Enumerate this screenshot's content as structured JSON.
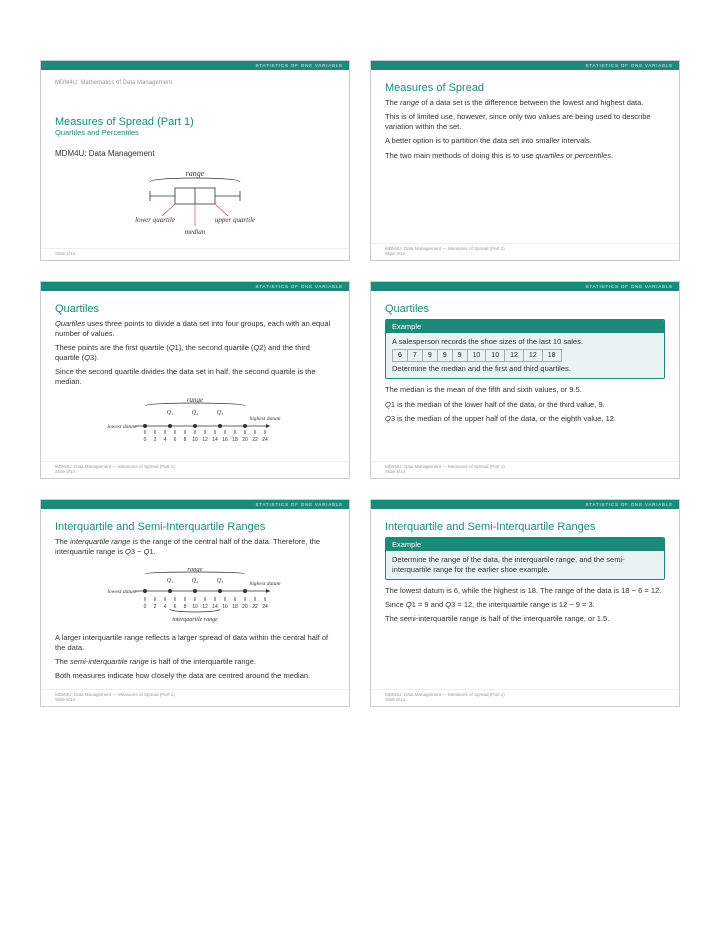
{
  "topbar": "STATISTICS OF ONE VARIABLE",
  "slide1": {
    "course": "MDM4U: Mathematics of Data Management",
    "title": "Measures of Spread (Part 1)",
    "subtitle": "Quartiles and Percentiles",
    "author": "MDM4U: Data Management",
    "footer": "Slide 1/14"
  },
  "slide2": {
    "title": "Measures of Spread",
    "p1a": "The ",
    "p1i": "range",
    "p1b": " of a data set is the difference between the lowest and highest data.",
    "p2": "This is of limited use, however, since only two values are being used to describe variation within the set.",
    "p3": "A better option is to partition the data set into smaller intervals.",
    "p4a": "The two main methods of doing this is to use ",
    "p4i1": "quartiles",
    "p4m": " or ",
    "p4i2": "percentiles",
    "p4b": ".",
    "footer": "MDM4U: Data Management — Measures of Spread (Part 1)\nSlide 2/14"
  },
  "slide3": {
    "title": "Quartiles",
    "p1i": "Quartiles",
    "p1b": " uses three points to divide a data set into four groups, each with an equal number of values.",
    "p2": "These points are the first quartile (Q1), the second quartile (Q2) and the third quartile (Q3).",
    "p3": "Since the second quartile divides the data set in half, the second quartile is the median.",
    "footer": "MDM4U: Data Management — Measures of Spread (Part 1)\nSlide 3/14"
  },
  "slide4": {
    "title": "Quartiles",
    "example_head": "Example",
    "ex1": "A salesperson records the shoe sizes of the last 10 sales.",
    "data": [
      "6",
      "7",
      "9",
      "9",
      "9",
      "10",
      "10",
      "12",
      "12",
      "18"
    ],
    "ex2": "Determine the median and the first and third quartiles.",
    "p1": "The median is the mean of the fifth and sixth values, or 9.5.",
    "p2": "Q1 is the median of the lower half of the data, or the third value, 9.",
    "p3": "Q3 is the median of the upper half of the data, or the eighth value, 12.",
    "footer": "MDM4U: Data Management — Measures of Spread (Part 1)\nSlide 4/14"
  },
  "slide5": {
    "title": "Interquartile and Semi-Interquartile Ranges",
    "p1a": "The ",
    "p1i": "interquartile range",
    "p1b": " is the range of the central half of the data. Therefore, the interquartile range is Q3 − Q1.",
    "p2": "A larger interquartile range reflects a larger spread of data within the central half of the data.",
    "p3a": "The ",
    "p3i": "semi-interquartile range",
    "p3b": " is half of the interquartile range.",
    "p4": "Both measures indicate how closely the data are centred around the median.",
    "footer": "MDM4U: Data Management — Measures of Spread (Part 1)\nSlide 5/14"
  },
  "slide6": {
    "title": "Interquartile and Semi-Interquartile Ranges",
    "example_head": "Example",
    "ex1": "Determine the range of the data, the interquartile range, and the semi-interquartile range for the earlier shoe example.",
    "p1": "The lowest datum is 6, while the highest is 18. The range of the data is 18 − 6 = 12.",
    "p2": "Since Q1 = 9 and Q3 = 12, the interquartile range is 12 − 9 = 3.",
    "p3": "The semi-interquartile range is half of the interquartile range, or 1.5.",
    "footer": "MDM4U: Data Management — Measures of Spread (Part 1)\nSlide 6/14"
  },
  "diagram_labels": {
    "range": "range",
    "lower_q": "lower quartile",
    "upper_q": "upper quartile",
    "median": "median",
    "lowest": "lowest datum",
    "highest": "highest datum",
    "iqr": "interquartile range",
    "q1": "Q₁",
    "q2": "Q₂",
    "q3": "Q₃",
    "ticks": [
      "0",
      "2",
      "4",
      "6",
      "8",
      "10",
      "12",
      "14",
      "16",
      "18",
      "20",
      "22",
      "24"
    ]
  },
  "colors": {
    "teal": "#1b8a7a",
    "red": "#c0392b"
  }
}
